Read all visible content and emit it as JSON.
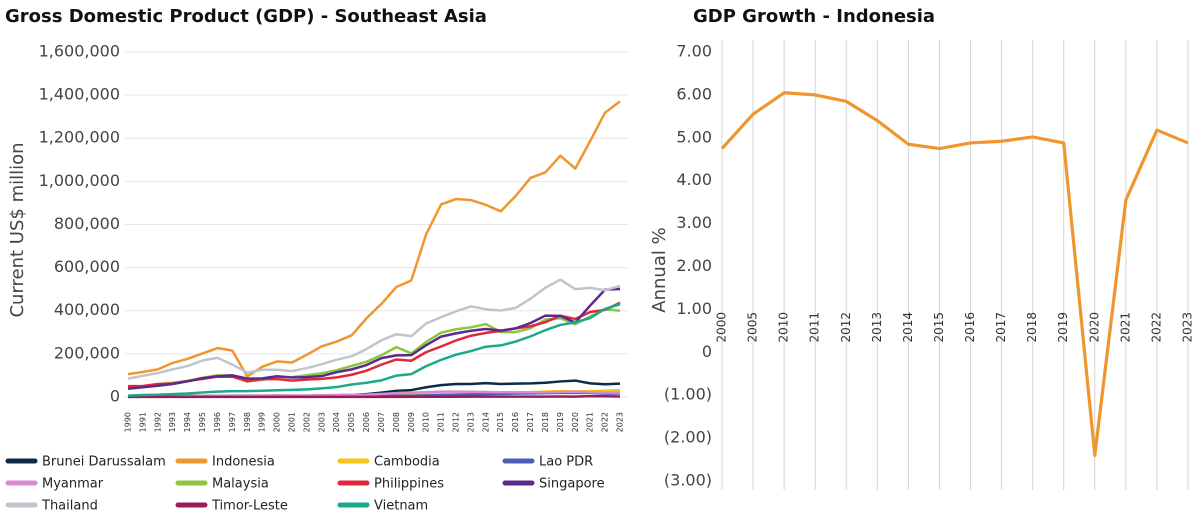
{
  "chart_data": [
    {
      "type": "line",
      "title": "Gross Domestic Product (GDP) - Southeast Asia",
      "ylabel": "Current US$ million",
      "grid": "y",
      "categories": [
        "1990",
        "1991",
        "1992",
        "1993",
        "1994",
        "1995",
        "1996",
        "1997",
        "1998",
        "1999",
        "2000",
        "2001",
        "2002",
        "2003",
        "2004",
        "2005",
        "2006",
        "2007",
        "2008",
        "2009",
        "2010",
        "2011",
        "2012",
        "2013",
        "2014",
        "2015",
        "2016",
        "2017",
        "2018",
        "2019",
        "2020",
        "2021",
        "2022",
        "2023"
      ],
      "ylim": [
        -60000,
        1650000
      ],
      "yticks": [
        0,
        {
          "value": 200000,
          "label": "200,000"
        },
        {
          "value": 400000,
          "label": "400,000"
        },
        {
          "value": 600000,
          "label": "600,000"
        },
        {
          "value": 800000,
          "label": "800,000"
        },
        {
          "value": 1000000,
          "label": "1,000,000"
        },
        {
          "value": 1200000,
          "label": "1,200,000"
        },
        {
          "value": 1400000,
          "label": "1,400,000"
        },
        {
          "value": 1600000,
          "label": "1,600,000"
        }
      ],
      "series": [
        {
          "name": "Brunei Darussalam",
          "color": "#0d2b45",
          "values": [
            4000,
            4300,
            4500,
            4400,
            4300,
            5000,
            5400,
            5200,
            4100,
            4600,
            6000,
            5600,
            5800,
            6600,
            7900,
            9500,
            13000,
            20000,
            28000,
            32000,
            45000,
            55000,
            60000,
            60000,
            64000,
            60000,
            62000,
            63000,
            66000,
            72000,
            76000,
            63000,
            59000,
            62000
          ]
        },
        {
          "name": "Indonesia",
          "color": "#f0962e",
          "values": [
            106000,
            116000,
            128000,
            158000,
            177000,
            202000,
            227000,
            215000,
            95000,
            140000,
            165000,
            160000,
            196000,
            235000,
            257000,
            286000,
            365000,
            432000,
            510000,
            540000,
            755000,
            893000,
            918000,
            913000,
            891000,
            861000,
            932000,
            1016000,
            1042000,
            1119000,
            1059000,
            1187000,
            1319000,
            1371000
          ]
        },
        {
          "name": "Cambodia",
          "color": "#f5c518",
          "values": [
            1700,
            2000,
            2300,
            2500,
            2800,
            3400,
            3500,
            3400,
            3100,
            3500,
            3700,
            4000,
            4300,
            4700,
            5300,
            6300,
            7300,
            8600,
            10400,
            10400,
            11200,
            12800,
            14000,
            15200,
            16700,
            18000,
            20000,
            22200,
            24600,
            27100,
            25900,
            27000,
            29500,
            31800
          ]
        },
        {
          "name": "Lao PDR",
          "color": "#4a5fb5",
          "values": [
            900,
            1000,
            1100,
            1300,
            1500,
            1800,
            1900,
            1700,
            1300,
            1500,
            1700,
            1800,
            1800,
            2000,
            2400,
            2700,
            3500,
            4200,
            5400,
            5800,
            7100,
            8700,
            10200,
            11900,
            13300,
            14400,
            15800,
            16900,
            17800,
            18700,
            19000,
            18800,
            15700,
            15800
          ]
        },
        {
          "name": "Myanmar",
          "color": "#d98ad0",
          "values": [
            3000,
            3000,
            3500,
            4000,
            4500,
            5000,
            5500,
            6000,
            6500,
            7000,
            7500,
            7000,
            7000,
            8000,
            9000,
            10000,
            11000,
            14000,
            18000,
            20000,
            22000,
            25000,
            25000,
            24000,
            23000,
            22000,
            22000,
            22000,
            22000,
            23000,
            24000,
            22000,
            20000,
            20000
          ]
        },
        {
          "name": "Malaysia",
          "color": "#8cc63f",
          "values": [
            44000,
            49000,
            59000,
            66000,
            74000,
            89000,
            100000,
            100000,
            72000,
            79000,
            93000,
            92000,
            101000,
            110000,
            124000,
            144000,
            163000,
            194000,
            231000,
            202000,
            255000,
            298000,
            314000,
            323000,
            338000,
            301000,
            301000,
            319000,
            359000,
            365000,
            337000,
            373000,
            407000,
            400000
          ]
        },
        {
          "name": "Philippines",
          "color": "#e0283c",
          "values": [
            50000,
            51000,
            60000,
            62000,
            74000,
            84000,
            94000,
            94000,
            73000,
            83000,
            83000,
            76000,
            81000,
            84000,
            91000,
            103000,
            122000,
            150000,
            174000,
            168000,
            208000,
            234000,
            262000,
            284000,
            297000,
            306000,
            318000,
            328000,
            347000,
            377000,
            362000,
            394000,
            404000,
            437000
          ]
        },
        {
          "name": "Singapore",
          "color": "#5c2a8a",
          "values": [
            38000,
            45000,
            52000,
            60000,
            73000,
            87000,
            96000,
            100000,
            85000,
            86000,
            96000,
            90000,
            92000,
            97000,
            115000,
            128000,
            148000,
            180000,
            193000,
            194000,
            240000,
            280000,
            295000,
            307000,
            315000,
            308000,
            318000,
            343000,
            377000,
            376000,
            345000,
            424000,
            498000,
            501000
          ]
        },
        {
          "name": "Thailand",
          "color": "#c0c4cc",
          "values": [
            85000,
            98000,
            111000,
            128000,
            144000,
            169000,
            182000,
            150000,
            113000,
            126000,
            126000,
            120000,
            134000,
            152000,
            173000,
            189000,
            222000,
            263000,
            291000,
            282000,
            341000,
            370000,
            397000,
            420000,
            407000,
            401000,
            413000,
            456000,
            507000,
            544000,
            500000,
            506000,
            495000,
            515000
          ]
        },
        {
          "name": "Timor-Leste",
          "color": "#9b1b5a",
          "values": [
            300,
            300,
            300,
            300,
            350,
            350,
            400,
            400,
            350,
            300,
            350,
            400,
            450,
            450,
            450,
            450,
            450,
            550,
            650,
            750,
            900,
            1100,
            1200,
            1400,
            1500,
            1600,
            1700,
            1600,
            1600,
            1900,
            1800,
            3600,
            3200,
            2100
          ]
        },
        {
          "name": "Vietnam",
          "color": "#1aaa8a",
          "values": [
            6000,
            9000,
            10000,
            13000,
            16000,
            21000,
            25000,
            27000,
            27000,
            29000,
            31000,
            33000,
            35000,
            40000,
            46000,
            58000,
            66000,
            77000,
            99000,
            106000,
            143000,
            172000,
            196000,
            213000,
            233000,
            239000,
            257000,
            281000,
            310000,
            334000,
            346000,
            366000,
            409000,
            430000
          ]
        }
      ]
    },
    {
      "type": "line",
      "title": "GDP Growth - Indonesia",
      "ylabel": "Annual %",
      "grid": "x",
      "color": "#f0962e",
      "categories": [
        "2000",
        "2005",
        "2010",
        "2011",
        "2012",
        "2013",
        "2014",
        "2015",
        "2016",
        "2017",
        "2018",
        "2019",
        "2020",
        "2021",
        "2022",
        "2023"
      ],
      "values": [
        4.75,
        5.55,
        6.05,
        6.0,
        5.85,
        5.4,
        4.85,
        4.75,
        4.88,
        4.92,
        5.02,
        4.88,
        -2.4,
        3.55,
        5.18,
        4.88
      ],
      "ylim": [
        -3,
        7
      ],
      "yticks": [
        {
          "value": 7,
          "label": "7.00"
        },
        {
          "value": 6,
          "label": "6.00"
        },
        {
          "value": 5,
          "label": "5.00"
        },
        {
          "value": 4,
          "label": "4.00"
        },
        {
          "value": 3,
          "label": "3.00"
        },
        {
          "value": 2,
          "label": "2.00"
        },
        {
          "value": 1,
          "label": "1.00"
        },
        0,
        {
          "value": -1,
          "label": "(1.00)"
        },
        {
          "value": -2,
          "label": "(2.00)"
        },
        {
          "value": -3,
          "label": "(3.00)"
        }
      ]
    }
  ]
}
